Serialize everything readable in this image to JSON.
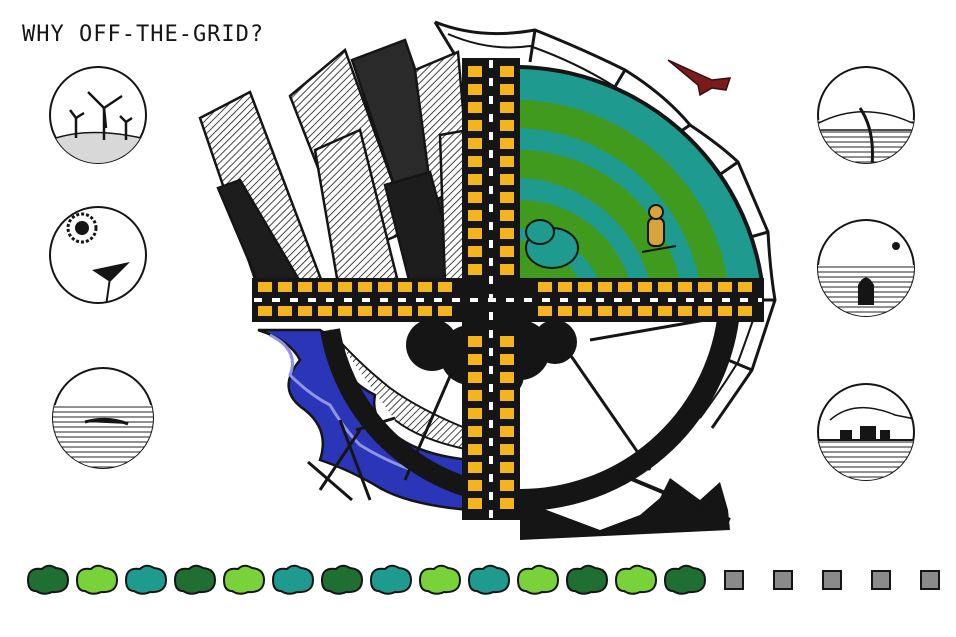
{
  "title": "WHY OFF-THE-GRID?",
  "colors": {
    "ink": "#151515",
    "road_yellow": "#f4b41e",
    "teal": "#1f9a8e",
    "green": "#3f9a1e",
    "light_green": "#7ad23a",
    "river_blue": "#2b35b8",
    "plane_red": "#7a1c1c",
    "gray": "#b8b8b8"
  },
  "left_vignettes": [
    {
      "icon": "wind-turbines-icon"
    },
    {
      "icon": "sun-and-sail-icon"
    },
    {
      "icon": "sea-horizon-icon"
    }
  ],
  "right_vignettes": [
    {
      "icon": "hill-path-icon"
    },
    {
      "icon": "moon-and-stone-icon"
    },
    {
      "icon": "buildings-skyline-icon"
    }
  ],
  "bottom_row": {
    "shapes": [
      {
        "kind": "blob",
        "color": "#1f6e32"
      },
      {
        "kind": "blob",
        "color": "#7ad23a"
      },
      {
        "kind": "blob",
        "color": "#1f9a8e"
      },
      {
        "kind": "blob",
        "color": "#1f6e32"
      },
      {
        "kind": "blob",
        "color": "#7ad23a"
      },
      {
        "kind": "blob",
        "color": "#1f9a8e"
      },
      {
        "kind": "blob",
        "color": "#1f6e32"
      },
      {
        "kind": "blob",
        "color": "#1f9a8e"
      },
      {
        "kind": "blob",
        "color": "#7ad23a"
      },
      {
        "kind": "blob",
        "color": "#1f9a8e"
      },
      {
        "kind": "blob",
        "color": "#7ad23a"
      },
      {
        "kind": "blob",
        "color": "#1f6e32"
      },
      {
        "kind": "blob",
        "color": "#7ad23a"
      },
      {
        "kind": "blob",
        "color": "#1f6e32"
      },
      {
        "kind": "square",
        "color": "#8a8a8a"
      },
      {
        "kind": "square",
        "color": "#8a8a8a"
      },
      {
        "kind": "square",
        "color": "#8a8a8a"
      },
      {
        "kind": "square",
        "color": "#8a8a8a"
      },
      {
        "kind": "square",
        "color": "#8a8a8a"
      }
    ]
  }
}
